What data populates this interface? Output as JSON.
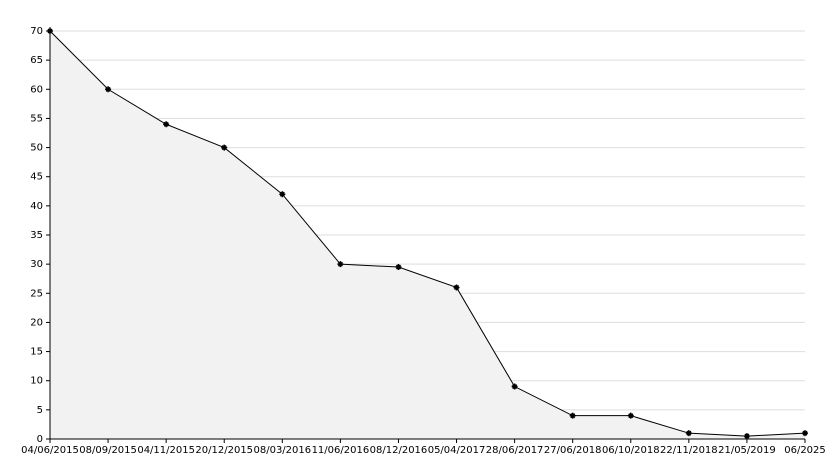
{
  "chart_data": {
    "type": "area",
    "categories": [
      "04/06/2015",
      "08/09/2015",
      "04/11/2015",
      "20/12/2015",
      "08/03/2016",
      "11/06/2016",
      "08/12/2016",
      "05/04/2017",
      "28/06/2017",
      "27/06/2018",
      "06/10/2018",
      "22/11/2018",
      "21/05/2019",
      "06/2025"
    ],
    "values": [
      70,
      60,
      54,
      50,
      42,
      30,
      29.5,
      26,
      9,
      4,
      4,
      1,
      0.5,
      1
    ],
    "color": "#000000",
    "fill": "#f2f2f2",
    "ylim": [
      0,
      70
    ],
    "yticks": [
      0,
      5,
      10,
      15,
      20,
      25,
      30,
      35,
      40,
      45,
      50,
      55,
      60,
      65,
      70
    ],
    "grid": true
  }
}
